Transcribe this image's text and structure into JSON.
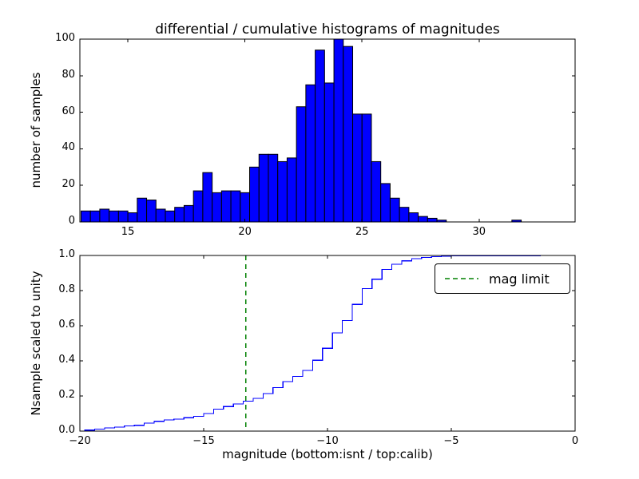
{
  "figure": {
    "background": "#ffffff",
    "axes_color": "#000000"
  },
  "chart_data": [
    {
      "type": "bar",
      "title": "differential / cumulative histograms of magnitudes",
      "xlabel": "",
      "ylabel": "number of samples",
      "xlim": [
        12.95,
        34.1
      ],
      "ylim": [
        0,
        100
      ],
      "xticks": [
        15,
        20,
        25,
        30
      ],
      "xtick_labels": [
        "15",
        "20",
        "25",
        "30"
      ],
      "yticks": [
        0,
        20,
        40,
        60,
        80,
        100
      ],
      "ytick_labels": [
        "0",
        "20",
        "40",
        "60",
        "80",
        "100"
      ],
      "bin_start": 13.0,
      "bin_width": 0.4,
      "values": [
        6,
        6,
        7,
        6,
        6,
        5,
        13,
        12,
        7,
        6,
        8,
        9,
        17,
        27,
        16,
        17,
        17,
        16,
        30,
        37,
        37,
        33,
        35,
        63,
        75,
        94,
        76,
        100,
        96,
        59,
        59,
        33,
        21,
        13,
        8,
        5,
        3,
        2,
        1,
        0,
        0,
        0,
        0,
        0,
        0,
        0,
        1,
        0,
        0
      ],
      "bar_color": "#0000ff",
      "bar_edge_color": "#000000",
      "grid": false
    },
    {
      "type": "line",
      "title": "",
      "xlabel": "magnitude (bottom:isnt / top:calib)",
      "ylabel": "Nsample scaled to unity",
      "xlim": [
        -20,
        0
      ],
      "ylim": [
        0.0,
        1.0
      ],
      "xticks": [
        -20,
        -15,
        -10,
        -5,
        0
      ],
      "xtick_labels": [
        "−20",
        "−15",
        "−10",
        "−5",
        "0"
      ],
      "yticks": [
        0.0,
        0.2,
        0.4,
        0.6,
        0.8,
        1.0
      ],
      "ytick_labels": [
        "0.0",
        "0.2",
        "0.4",
        "0.6",
        "0.8",
        "1.0"
      ],
      "step_start_x": -19.8,
      "step_width": 0.4,
      "cumulative": [
        0.006,
        0.011,
        0.018,
        0.023,
        0.029,
        0.033,
        0.045,
        0.056,
        0.063,
        0.068,
        0.076,
        0.084,
        0.1,
        0.125,
        0.14,
        0.155,
        0.171,
        0.186,
        0.213,
        0.248,
        0.282,
        0.312,
        0.345,
        0.403,
        0.472,
        0.559,
        0.629,
        0.722,
        0.811,
        0.865,
        0.92,
        0.95,
        0.969,
        0.982,
        0.989,
        0.993,
        0.996,
        0.998,
        0.999,
        0.999,
        0.999,
        0.999,
        0.999,
        0.999,
        0.999,
        0.999,
        1.0,
        1.0,
        1.0
      ],
      "line_color": "#0000ff",
      "vline": {
        "x": -13.3,
        "color": "#008000",
        "style": "dashed"
      },
      "legend": {
        "label": "mag limit",
        "position": "upper-right",
        "line_color": "#008000"
      },
      "grid": false
    }
  ]
}
